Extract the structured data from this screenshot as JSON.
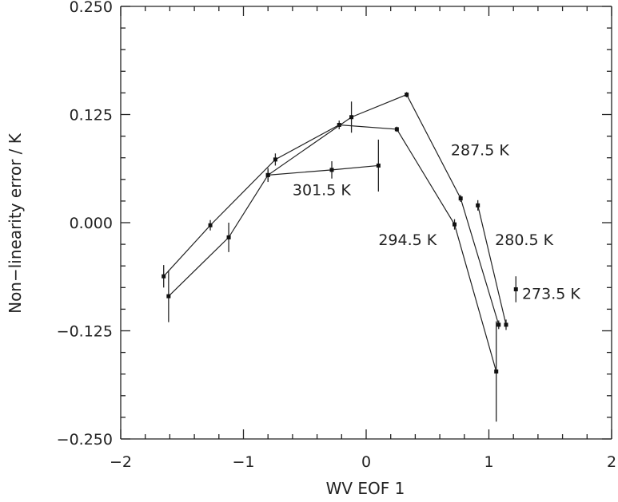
{
  "chart_data": {
    "type": "line",
    "title": "",
    "xlabel": "WV EOF 1",
    "ylabel": "Non−linearity error  / K",
    "xlim": [
      -2,
      2
    ],
    "ylim": [
      -0.25,
      0.25
    ],
    "x_ticks": [
      -2,
      -1,
      0,
      1,
      2
    ],
    "x_tick_labels": [
      "−2",
      "−1",
      "0",
      "1",
      "2"
    ],
    "y_ticks": [
      -0.25,
      -0.125,
      0,
      0.125,
      0.25
    ],
    "y_tick_labels": [
      "−0.250",
      "−0.125",
      "0.000",
      "0.125",
      "0.250"
    ],
    "grid": false,
    "legend": "none",
    "series": [
      {
        "name": "301.5 K",
        "points": [
          {
            "x": -1.65,
            "y": -0.062,
            "err": 0.013
          },
          {
            "x": -1.27,
            "y": -0.003,
            "err": 0.006
          },
          {
            "x": -0.74,
            "y": 0.073,
            "err": 0.007
          },
          {
            "x": -0.22,
            "y": 0.113,
            "err": 0.005
          },
          {
            "x": 0.25,
            "y": 0.108,
            "err": 0.003
          },
          {
            "x": 0.72,
            "y": -0.002,
            "err": 0.006
          },
          {
            "x": 1.06,
            "y": -0.172,
            "err": 0.058
          }
        ]
      },
      {
        "name": "294.5 K",
        "points": [
          {
            "x": -1.61,
            "y": -0.085,
            "err": 0.03
          },
          {
            "x": -1.12,
            "y": -0.017,
            "err": 0.017
          },
          {
            "x": -0.8,
            "y": 0.055,
            "err": 0.008
          },
          {
            "x": -0.12,
            "y": 0.122,
            "err": 0.018
          },
          {
            "x": 0.33,
            "y": 0.148,
            "err": 0.003
          },
          {
            "x": 0.77,
            "y": 0.028,
            "err": 0.004
          },
          {
            "x": 1.08,
            "y": -0.118,
            "err": 0.005
          }
        ]
      },
      {
        "name": "287.5 K",
        "points": [
          {
            "x": -0.8,
            "y": 0.055,
            "err": 0.006
          },
          {
            "x": -0.28,
            "y": 0.061,
            "err": 0.01
          },
          {
            "x": 0.1,
            "y": 0.066,
            "err": 0.03
          }
        ]
      },
      {
        "name": "280.5 K",
        "points": [
          {
            "x": 0.91,
            "y": 0.02,
            "err": 0.006
          },
          {
            "x": 1.14,
            "y": -0.118,
            "err": 0.006
          }
        ]
      },
      {
        "name": "273.5 K",
        "points": [
          {
            "x": 1.22,
            "y": -0.077,
            "err": 0.015
          }
        ]
      }
    ],
    "series_labels": [
      {
        "text": "301.5 K",
        "x": -0.6,
        "y": 0.032
      },
      {
        "text": "294.5 K",
        "x": 0.1,
        "y": -0.026
      },
      {
        "text": "287.5 K",
        "x": 0.69,
        "y": 0.078
      },
      {
        "text": "280.5 K",
        "x": 1.05,
        "y": -0.026
      },
      {
        "text": "273.5 K",
        "x": 1.27,
        "y": -0.088
      }
    ]
  }
}
